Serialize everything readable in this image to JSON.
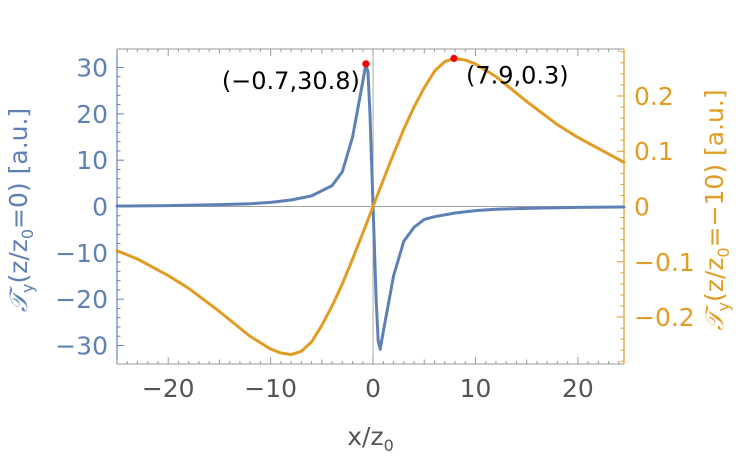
{
  "chart_data": {
    "type": "line",
    "xlabel": "x/z",
    "xlabel_sub": "0",
    "xlim": [
      -25,
      24.5
    ],
    "x_ticks": [
      -20,
      -10,
      0,
      10,
      20
    ],
    "grid": false,
    "zero_line": true,
    "colors": {
      "left": "#5e81b5",
      "right": "#e19c24",
      "marker": "#ff0000",
      "axis_text": "#555555"
    },
    "left_axis": {
      "label_script": "𝒯",
      "label_sub": "y",
      "label_body": "(z/z",
      "label_sub0": "0",
      "label_tail": "=0) [a.u.]",
      "ylim": [
        -34,
        34
      ],
      "ticks": [
        -30,
        -20,
        -10,
        0,
        10,
        20,
        30
      ],
      "tick_labels": [
        "−30",
        "−20",
        "−10",
        "0",
        "10",
        "20",
        "30"
      ]
    },
    "right_axis": {
      "label_script": "𝒯",
      "label_sub": "y",
      "label_body": "(z/z",
      "label_sub0": "0",
      "label_tail": "=−10) [a.u.]",
      "ylim": [
        -0.285,
        0.285
      ],
      "ticks": [
        -0.2,
        -0.1,
        0,
        0.1,
        0.2
      ],
      "tick_labels": [
        "−0.2",
        "−0.1",
        "0",
        "0.1",
        "0.2"
      ]
    },
    "x_tick_labels": [
      "−20",
      "−10",
      "0",
      "10",
      "20"
    ],
    "series": [
      {
        "axis": "left",
        "x": [
          -25,
          -20,
          -15,
          -12,
          -10,
          -8,
          -6,
          -4,
          -3,
          -2,
          -1.5,
          -1,
          -0.7,
          -0.5,
          -0.3,
          0,
          0.3,
          0.5,
          0.7,
          1,
          1.5,
          2,
          3,
          4,
          5,
          6,
          8,
          10,
          12,
          15,
          20,
          24.5
        ],
        "y": [
          0.1,
          0.2,
          0.4,
          0.6,
          0.9,
          1.4,
          2.3,
          4.5,
          7.5,
          15,
          21,
          27,
          30.8,
          29,
          20,
          0,
          -20,
          -29,
          -30.8,
          -27,
          -21,
          -15,
          -7.5,
          -4.5,
          -2.8,
          -2.2,
          -1.4,
          -0.9,
          -0.6,
          -0.4,
          -0.2,
          -0.1
        ]
      },
      {
        "axis": "right",
        "x": [
          -25,
          -23,
          -20,
          -18,
          -15,
          -12,
          -10,
          -9,
          -8,
          -7,
          -6,
          -5,
          -4,
          -3,
          -2,
          -1,
          0,
          1,
          2,
          3,
          4,
          5,
          6,
          7,
          7.9,
          9,
          10,
          12,
          15,
          18,
          20,
          22,
          24.5
        ],
        "y": [
          -0.08,
          -0.095,
          -0.125,
          -0.148,
          -0.19,
          -0.235,
          -0.258,
          -0.265,
          -0.268,
          -0.262,
          -0.245,
          -0.215,
          -0.18,
          -0.14,
          -0.095,
          -0.048,
          0,
          0.048,
          0.095,
          0.14,
          0.18,
          0.215,
          0.245,
          0.262,
          0.268,
          0.265,
          0.258,
          0.235,
          0.19,
          0.148,
          0.125,
          0.105,
          0.08
        ]
      }
    ],
    "annotations": [
      {
        "axis": "left",
        "x": -0.7,
        "y": 30.8,
        "label": "(−0.7,30.8)",
        "side": "left"
      },
      {
        "axis": "right",
        "x": 7.9,
        "y": 0.268,
        "label": "(7.9,0.3)",
        "side": "right"
      }
    ]
  }
}
